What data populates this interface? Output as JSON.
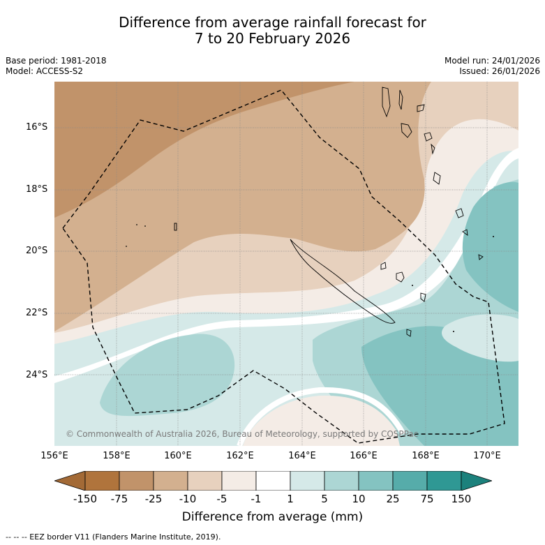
{
  "title": {
    "line1": "Difference from average rainfall forecast for",
    "line2": "7 to 20 February 2026"
  },
  "meta_left": {
    "base_period": "Base period: 1981-2018",
    "model": "Model: ACCESS-S2"
  },
  "meta_right": {
    "model_run": "Model run: 24/01/2026",
    "issued": "Issued: 26/01/2026"
  },
  "map": {
    "lat_labels": [
      "16°S",
      "18°S",
      "20°S",
      "22°S",
      "24°S"
    ],
    "lon_labels": [
      "156°E",
      "158°E",
      "160°E",
      "162°E",
      "164°E",
      "166°E",
      "168°E",
      "170°E"
    ],
    "copyright": "© Commonwealth of Australia 2026, Bureau of Meteorology, supported by COSPPac"
  },
  "colorbar": {
    "title": "Difference from average (mm)",
    "tick_labels": [
      "-150",
      "-75",
      "-25",
      "-10",
      "-5",
      "-1",
      "1",
      "5",
      "10",
      "25",
      "75",
      "150"
    ],
    "colors": [
      "#a36a36",
      "#b0743c",
      "#c1936a",
      "#d3b08f",
      "#e7d1be",
      "#f4ece6",
      "#ffffff",
      "#d5e9e8",
      "#acd6d4",
      "#84c3c1",
      "#56acaa",
      "#2f9894",
      "#1c817c"
    ]
  },
  "legend": {
    "eez": "--  --  -- EEZ border V11 (Flanders Marine Institute, 2019)."
  }
}
